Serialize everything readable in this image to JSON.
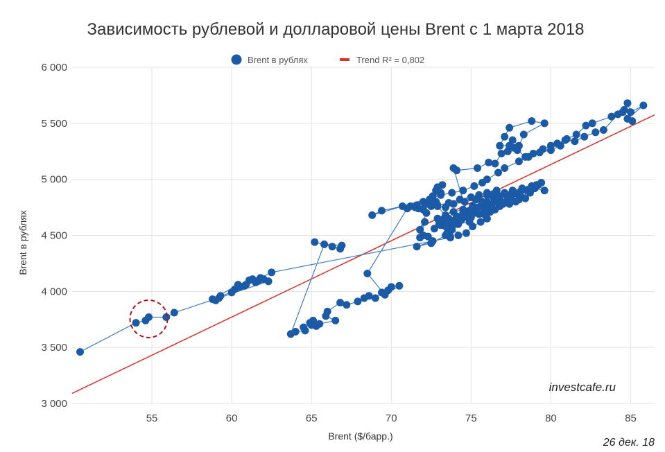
{
  "chart_data": {
    "type": "scatter",
    "title": "Зависимость рублевой и долларовой цены Brent с 1 марта 2018",
    "xlabel": "Brent ($/барр.)",
    "ylabel": "Brent в рублях",
    "xlim": [
      50,
      86.5
    ],
    "ylim": [
      3000,
      6000
    ],
    "x_ticks": [
      55,
      60,
      65,
      70,
      75,
      80,
      85
    ],
    "y_ticks": [
      3000,
      3500,
      4000,
      4500,
      5000,
      5500,
      6000
    ],
    "y_tick_labels": [
      "3 000",
      "3 500",
      "4 000",
      "4 500",
      "5 000",
      "5 500",
      "6 000"
    ],
    "grid": true,
    "legend_position": "top",
    "colors": {
      "series": "#1a5aa6",
      "line": "#3a7cc4",
      "trend": "#d9312b",
      "annotation": "#b0131c"
    },
    "series": [
      {
        "name": "Brent в рублях",
        "points": [
          [
            65.2,
            4440
          ],
          [
            66.3,
            4400
          ],
          [
            66.8,
            4380
          ],
          [
            66.9,
            4410
          ],
          [
            65.8,
            4420
          ],
          [
            63.7,
            3620
          ],
          [
            64.0,
            3640
          ],
          [
            64.6,
            3650
          ],
          [
            64.5,
            3680
          ],
          [
            65.0,
            3700
          ],
          [
            65.3,
            3690
          ],
          [
            64.9,
            3720
          ],
          [
            65.1,
            3740
          ],
          [
            65.5,
            3710
          ],
          [
            66.5,
            3740
          ],
          [
            65.9,
            3780
          ],
          [
            66.0,
            3820
          ],
          [
            66.8,
            3900
          ],
          [
            67.2,
            3880
          ],
          [
            67.9,
            3910
          ],
          [
            68.3,
            3940
          ],
          [
            68.6,
            3960
          ],
          [
            69.0,
            3940
          ],
          [
            69.4,
            3990
          ],
          [
            69.8,
            4010
          ],
          [
            70.0,
            4040
          ],
          [
            70.5,
            4050
          ],
          [
            69.6,
            3970
          ],
          [
            68.5,
            4160
          ],
          [
            71.0,
            4740
          ],
          [
            71.5,
            4750
          ],
          [
            72.0,
            4730
          ],
          [
            72.3,
            4780
          ],
          [
            72.5,
            4760
          ],
          [
            72.8,
            4800
          ],
          [
            72.6,
            4850
          ],
          [
            73.1,
            4880
          ],
          [
            72.8,
            4900
          ],
          [
            72.9,
            4930
          ],
          [
            73.2,
            4950
          ],
          [
            72.4,
            4820
          ],
          [
            72.0,
            4800
          ],
          [
            71.6,
            4770
          ],
          [
            72.2,
            4700
          ],
          [
            71.8,
            4550
          ],
          [
            72.1,
            4620
          ],
          [
            71.8,
            4480
          ],
          [
            72.0,
            4500
          ],
          [
            72.3,
            4490
          ],
          [
            72.6,
            4450
          ],
          [
            71.6,
            4400
          ],
          [
            72.5,
            4430
          ],
          [
            73.4,
            4500
          ],
          [
            73.8,
            4550
          ],
          [
            74.0,
            4600
          ],
          [
            73.7,
            4490
          ],
          [
            73.6,
            4560
          ],
          [
            73.0,
            4600
          ],
          [
            73.5,
            4640
          ],
          [
            74.1,
            4660
          ],
          [
            74.5,
            4700
          ],
          [
            74.9,
            4720
          ],
          [
            75.3,
            4750
          ],
          [
            75.6,
            4760
          ],
          [
            76.0,
            4800
          ],
          [
            76.5,
            4820
          ],
          [
            76.8,
            4850
          ],
          [
            77.2,
            4860
          ],
          [
            77.6,
            4880
          ],
          [
            78.1,
            4890
          ],
          [
            78.5,
            4900
          ],
          [
            79.0,
            4920
          ],
          [
            79.6,
            4900
          ],
          [
            79.2,
            4950
          ],
          [
            78.7,
            4880
          ],
          [
            78.1,
            4850
          ],
          [
            77.5,
            4840
          ],
          [
            76.9,
            4800
          ],
          [
            76.3,
            4780
          ],
          [
            75.8,
            4740
          ],
          [
            75.2,
            4720
          ],
          [
            74.7,
            4690
          ],
          [
            74.1,
            4670
          ],
          [
            73.6,
            4650
          ],
          [
            73.2,
            4640
          ],
          [
            74.0,
            4620
          ],
          [
            74.6,
            4680
          ],
          [
            75.4,
            4700
          ],
          [
            76.1,
            4760
          ],
          [
            76.7,
            4790
          ],
          [
            77.3,
            4830
          ],
          [
            77.9,
            4870
          ],
          [
            78.6,
            4910
          ],
          [
            79.1,
            4950
          ],
          [
            79.4,
            4970
          ],
          [
            78.8,
            4940
          ],
          [
            78.2,
            4920
          ],
          [
            77.6,
            4900
          ],
          [
            77.1,
            4880
          ],
          [
            76.4,
            4840
          ],
          [
            75.7,
            4800
          ],
          [
            75.1,
            4760
          ],
          [
            74.5,
            4730
          ],
          [
            73.9,
            4710
          ],
          [
            73.4,
            4680
          ],
          [
            72.9,
            4650
          ],
          [
            73.3,
            4610
          ],
          [
            73.8,
            4630
          ],
          [
            74.3,
            4640
          ],
          [
            74.8,
            4660
          ],
          [
            75.5,
            4690
          ],
          [
            76.2,
            4710
          ],
          [
            76.8,
            4760
          ],
          [
            77.4,
            4780
          ],
          [
            78.0,
            4820
          ],
          [
            78.4,
            4830
          ],
          [
            77.8,
            4800
          ],
          [
            77.0,
            4780
          ],
          [
            76.5,
            4730
          ],
          [
            75.9,
            4700
          ],
          [
            75.0,
            4680
          ],
          [
            74.4,
            4660
          ],
          [
            73.7,
            4620
          ],
          [
            73.1,
            4590
          ],
          [
            72.7,
            4560
          ],
          [
            73.4,
            4580
          ],
          [
            74.2,
            4600
          ],
          [
            74.9,
            4620
          ],
          [
            73.9,
            5100
          ],
          [
            74.1,
            5080
          ],
          [
            75.4,
            5100
          ],
          [
            76.1,
            5150
          ],
          [
            76.5,
            5140
          ],
          [
            76.9,
            5230
          ],
          [
            77.3,
            5250
          ],
          [
            77.7,
            5280
          ],
          [
            78.0,
            5300
          ],
          [
            77.6,
            5350
          ],
          [
            77.4,
            5300
          ],
          [
            76.8,
            5300
          ],
          [
            77.1,
            5380
          ],
          [
            77.4,
            5460
          ],
          [
            78.8,
            5520
          ],
          [
            79.6,
            5500
          ],
          [
            78.3,
            5400
          ],
          [
            77.9,
            5260
          ],
          [
            78.4,
            5200
          ],
          [
            78.9,
            5230
          ],
          [
            79.5,
            5270
          ],
          [
            80.0,
            5300
          ],
          [
            80.4,
            5320
          ],
          [
            80.9,
            5350
          ],
          [
            81.5,
            5340
          ],
          [
            82.1,
            5380
          ],
          [
            82.8,
            5420
          ],
          [
            83.3,
            5440
          ],
          [
            84.2,
            5580
          ],
          [
            84.6,
            5620
          ],
          [
            84.8,
            5680
          ],
          [
            85.0,
            5600
          ],
          [
            85.8,
            5660
          ],
          [
            84.8,
            5540
          ],
          [
            85.1,
            5520
          ],
          [
            84.5,
            5600
          ],
          [
            83.8,
            5560
          ],
          [
            82.6,
            5500
          ],
          [
            82.2,
            5480
          ],
          [
            81.6,
            5400
          ],
          [
            81.0,
            5360
          ],
          [
            80.6,
            5300
          ],
          [
            80.0,
            5260
          ],
          [
            79.3,
            5240
          ],
          [
            78.6,
            5200
          ],
          [
            78.0,
            5160
          ],
          [
            77.1,
            5100
          ],
          [
            76.7,
            5060
          ],
          [
            76.0,
            5000
          ],
          [
            75.7,
            4970
          ],
          [
            75.2,
            4940
          ],
          [
            74.5,
            4900
          ],
          [
            73.8,
            4880
          ],
          [
            73.1,
            4860
          ],
          [
            68.8,
            4680
          ],
          [
            69.4,
            4720
          ],
          [
            70.7,
            4760
          ],
          [
            71.2,
            4760
          ],
          [
            71.7,
            4740
          ],
          [
            72.1,
            4780
          ],
          [
            72.9,
            4760
          ],
          [
            73.4,
            4750
          ],
          [
            73.9,
            4780
          ],
          [
            74.6,
            4800
          ],
          [
            75.3,
            4820
          ],
          [
            76.0,
            4860
          ],
          [
            76.4,
            4870
          ],
          [
            76.6,
            4900
          ],
          [
            76.0,
            4880
          ],
          [
            75.5,
            4860
          ],
          [
            75.0,
            4840
          ],
          [
            74.3,
            4820
          ],
          [
            73.6,
            4790
          ],
          [
            72.9,
            4770
          ],
          [
            74.2,
            4500
          ],
          [
            74.7,
            4520
          ],
          [
            75.1,
            4580
          ],
          [
            75.6,
            4620
          ],
          [
            76.0,
            4650
          ],
          [
            75.8,
            4690
          ],
          [
            75.0,
            4660
          ],
          [
            74.4,
            4640
          ],
          [
            73.9,
            4600
          ],
          [
            73.5,
            4520
          ],
          [
            73.7,
            4480
          ],
          [
            62.5,
            4170
          ],
          [
            61.8,
            4120
          ],
          [
            61.5,
            4080
          ],
          [
            61.1,
            4100
          ],
          [
            60.9,
            4060
          ],
          [
            60.5,
            4040
          ],
          [
            60.2,
            4020
          ],
          [
            60.0,
            3990
          ],
          [
            59.3,
            3960
          ],
          [
            59.0,
            3920
          ],
          [
            59.2,
            3940
          ],
          [
            58.8,
            3930
          ],
          [
            60.4,
            4060
          ],
          [
            60.8,
            4050
          ],
          [
            61.3,
            4110
          ],
          [
            61.7,
            4100
          ],
          [
            62.0,
            4110
          ],
          [
            62.3,
            4090
          ],
          [
            56.4,
            3810
          ],
          [
            55.9,
            3770
          ],
          [
            54.8,
            3770
          ],
          [
            54.6,
            3740
          ],
          [
            54.0,
            3720
          ],
          [
            50.5,
            3460
          ]
        ]
      }
    ],
    "trend": {
      "name": "Trend R² = 0,802",
      "x": [
        50,
        86.5
      ],
      "y": [
        3090,
        5575
      ]
    },
    "annotations": [
      {
        "text": "investcafe.ru"
      },
      {
        "text": "26 дек. 18"
      }
    ]
  }
}
